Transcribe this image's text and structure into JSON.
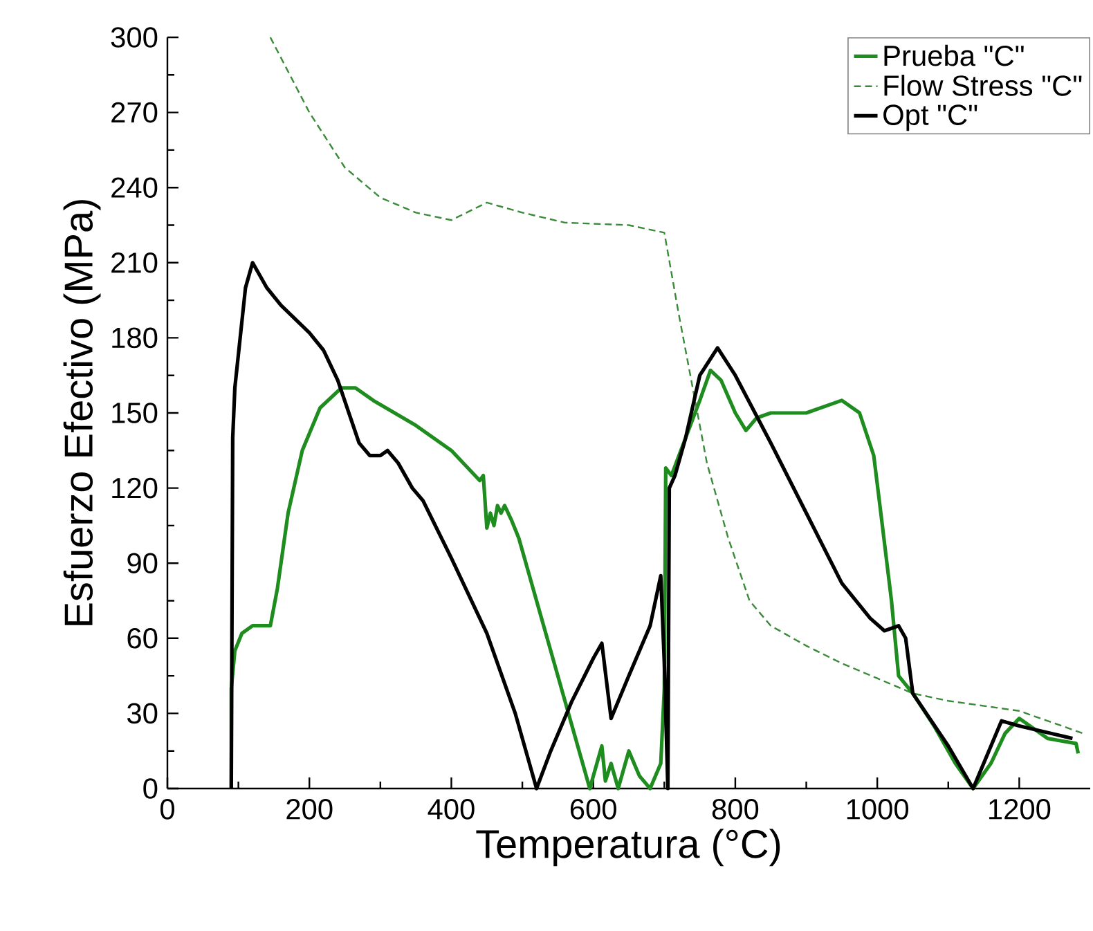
{
  "chart_data": {
    "type": "line",
    "xlabel": "Temperatura (°C)",
    "ylabel": "Esfuerzo Efectivo (MPa)",
    "xlim": [
      0,
      1300
    ],
    "ylim": [
      0,
      300
    ],
    "xticks": [
      0,
      200,
      400,
      600,
      800,
      1000,
      1200
    ],
    "yticks": [
      0,
      30,
      60,
      90,
      120,
      150,
      180,
      210,
      240,
      270,
      300
    ],
    "grid": false,
    "legend": "top right",
    "marker": "none",
    "series": [
      {
        "name": "Prueba \"C\"",
        "color": "#1e8c1e",
        "line_style": "solid",
        "x": [
          90,
          90,
          95,
          105,
          120,
          145,
          155,
          170,
          190,
          215,
          245,
          265,
          290,
          350,
          400,
          440,
          445,
          450,
          455,
          460,
          465,
          470,
          475,
          485,
          495,
          520,
          550,
          580,
          595,
          605,
          612,
          617,
          625,
          635,
          650,
          665,
          680,
          695,
          700,
          702,
          710,
          730,
          750,
          765,
          780,
          800,
          815,
          830,
          850,
          900,
          950,
          975,
          995,
          1005,
          1020,
          1030,
          1050,
          1080,
          1110,
          1135,
          1160,
          1180,
          1200,
          1240,
          1280,
          1283
        ],
        "values": [
          0,
          40,
          55,
          62,
          65,
          65,
          80,
          110,
          135,
          152,
          160,
          160,
          155,
          145,
          135,
          123,
          125,
          104,
          110,
          105,
          113,
          110,
          113,
          107,
          100,
          75,
          45,
          15,
          0,
          10,
          17,
          3,
          10,
          0,
          15,
          5,
          0,
          10,
          40,
          128,
          125,
          140,
          155,
          167,
          163,
          150,
          143,
          148,
          150,
          150,
          155,
          150,
          133,
          110,
          75,
          45,
          38,
          25,
          10,
          0,
          10,
          22,
          28,
          20,
          18,
          14
        ]
      },
      {
        "name": "Flow Stress \"C\"",
        "color": "#3a8a3a",
        "line_style": "dashed",
        "x": [
          145,
          200,
          250,
          300,
          350,
          400,
          450,
          500,
          560,
          650,
          700,
          720,
          740,
          760,
          790,
          820,
          850,
          900,
          950,
          1000,
          1050,
          1100,
          1200,
          1290
        ],
        "values": [
          300,
          270,
          248,
          236,
          230,
          227,
          234,
          230,
          226,
          225,
          222,
          190,
          160,
          130,
          100,
          75,
          65,
          57,
          50,
          44,
          38,
          35,
          31,
          22
        ]
      },
      {
        "name": "Opt \"C\"",
        "color": "#000000",
        "line_style": "solid",
        "x": [
          90,
          92,
          95,
          110,
          120,
          140,
          160,
          200,
          220,
          240,
          270,
          285,
          300,
          310,
          325,
          345,
          360,
          400,
          450,
          490,
          520,
          540,
          570,
          600,
          612,
          625,
          650,
          680,
          695,
          700,
          705,
          707,
          715,
          730,
          750,
          775,
          800,
          850,
          900,
          950,
          990,
          1010,
          1030,
          1040,
          1050,
          1100,
          1135,
          1175,
          1200,
          1275
        ],
        "values": [
          0,
          140,
          160,
          200,
          210,
          200,
          193,
          182,
          175,
          163,
          138,
          133,
          133,
          135,
          130,
          120,
          115,
          92,
          62,
          30,
          0,
          15,
          35,
          52,
          58,
          28,
          45,
          65,
          85,
          50,
          0,
          120,
          125,
          140,
          165,
          176,
          165,
          138,
          110,
          82,
          68,
          63,
          65,
          60,
          38,
          17,
          0,
          27,
          25,
          20
        ]
      }
    ]
  }
}
